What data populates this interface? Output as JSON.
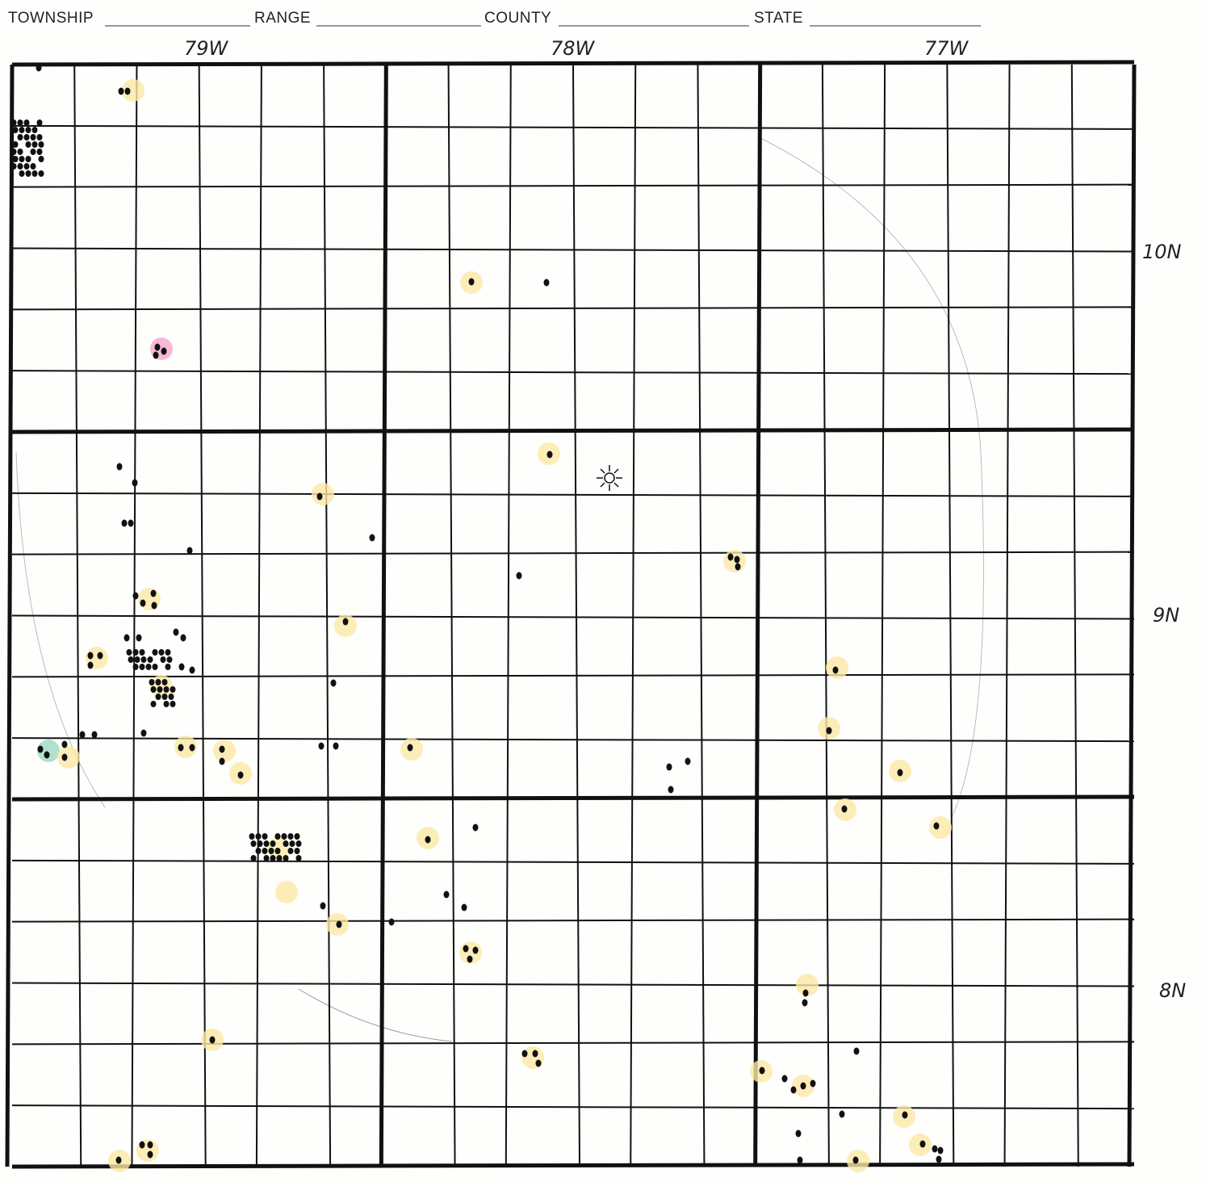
{
  "header": {
    "fields": [
      "TOWNSHIP",
      "RANGE",
      "COUNTY",
      "STATE"
    ]
  },
  "ranges": [
    "79W",
    "78W",
    "77W"
  ],
  "townships": [
    "10N",
    "9N",
    "8N"
  ]
}
